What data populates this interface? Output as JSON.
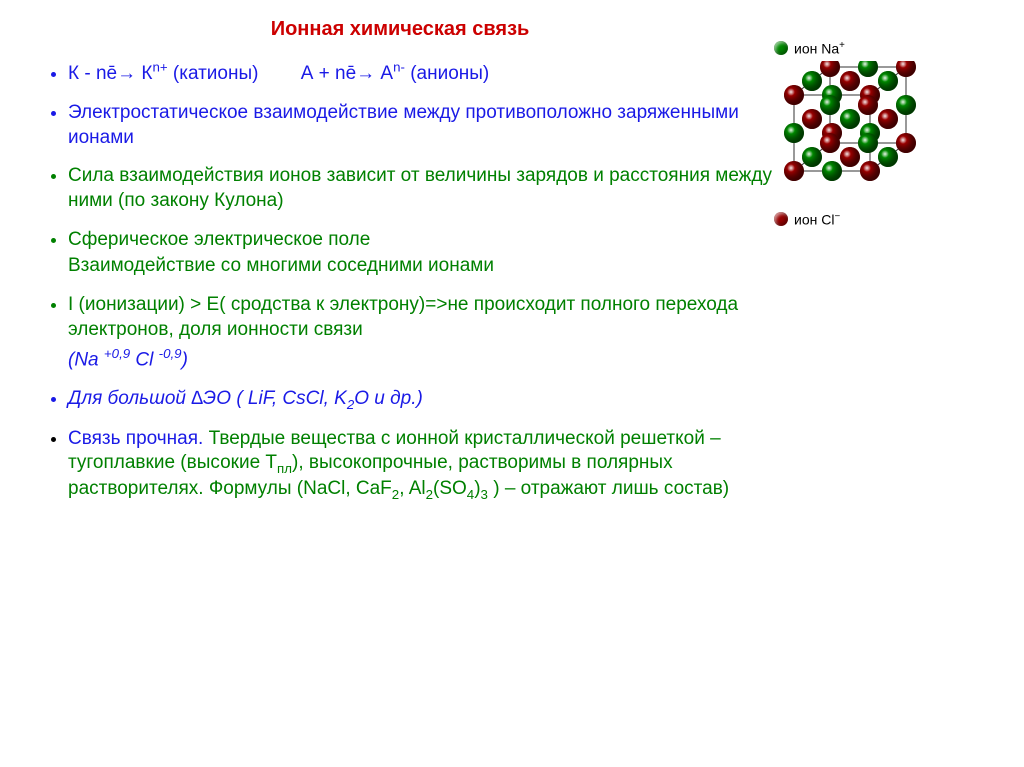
{
  "colors": {
    "title": "#cc0000",
    "blue": "#1a1ae6",
    "green": "#008000",
    "black": "#000000",
    "na_ion": "#008800",
    "cl_ion": "#990000",
    "lattice_edge": "#333333"
  },
  "title": "Ионная химическая связь",
  "legend": {
    "na": "ион Na",
    "cl": "ион Cl"
  },
  "bullets": {
    "b1_a": "К - nē→ К",
    "b1_a_sup": "n+",
    "b1_a_tail": " (катионы)",
    "b1_b": "А + nē→ А",
    "b1_b_sup": "n-",
    "b1_b_tail": " (анионы)",
    "b2": "Электростатическое взаимодействие между противоположно заряженными ионами",
    "b3": "Сила взаимодействия ионов зависит от величины зарядов и расстояния между ними (по закону Кулона)",
    "b4": "Сферическое электрическое поле",
    "b4_line2": "Взаимодействие со многими соседними ионами",
    "b5": "I (ионизации)  >  Е( сродства к электрону)=>не происходит полного перехода электронов, доля ионности связи",
    "b5_line2_pre": "(Na ",
    "b5_line2_sup1": "+0,9",
    "b5_line2_mid": " Cl ",
    "b5_line2_sup2": "-0,9",
    "b5_line2_post": ")",
    "b6_pre": "Для большой ∆ЭО ( LiF, CsCl, K",
    "b6_sub": "2",
    "b6_post": "O и др.)",
    "b7_a": "Связь прочная. ",
    "b7_b": "Твердые вещества с ионной кристаллической решеткой – тугоплавкие (высокие Т",
    "b7_b_sub": "пл",
    "b7_c_pre": "), высокопрочные, растворимы в полярных растворителях. Формулы (NaCl, CaF",
    "b7_c_sub1": "2",
    "b7_c_mid": ", Al",
    "b7_c_sub2": "2",
    "b7_c_mid2": "(SO",
    "b7_c_sub3": "4",
    "b7_c_mid3": ")",
    "b7_c_sub4": "3",
    "b7_c_post": " ) – отражают лишь состав)"
  },
  "lattice": {
    "size": 3,
    "spacing": 38,
    "ball_r": 10,
    "depth_dx": 18,
    "depth_dy": -14
  }
}
